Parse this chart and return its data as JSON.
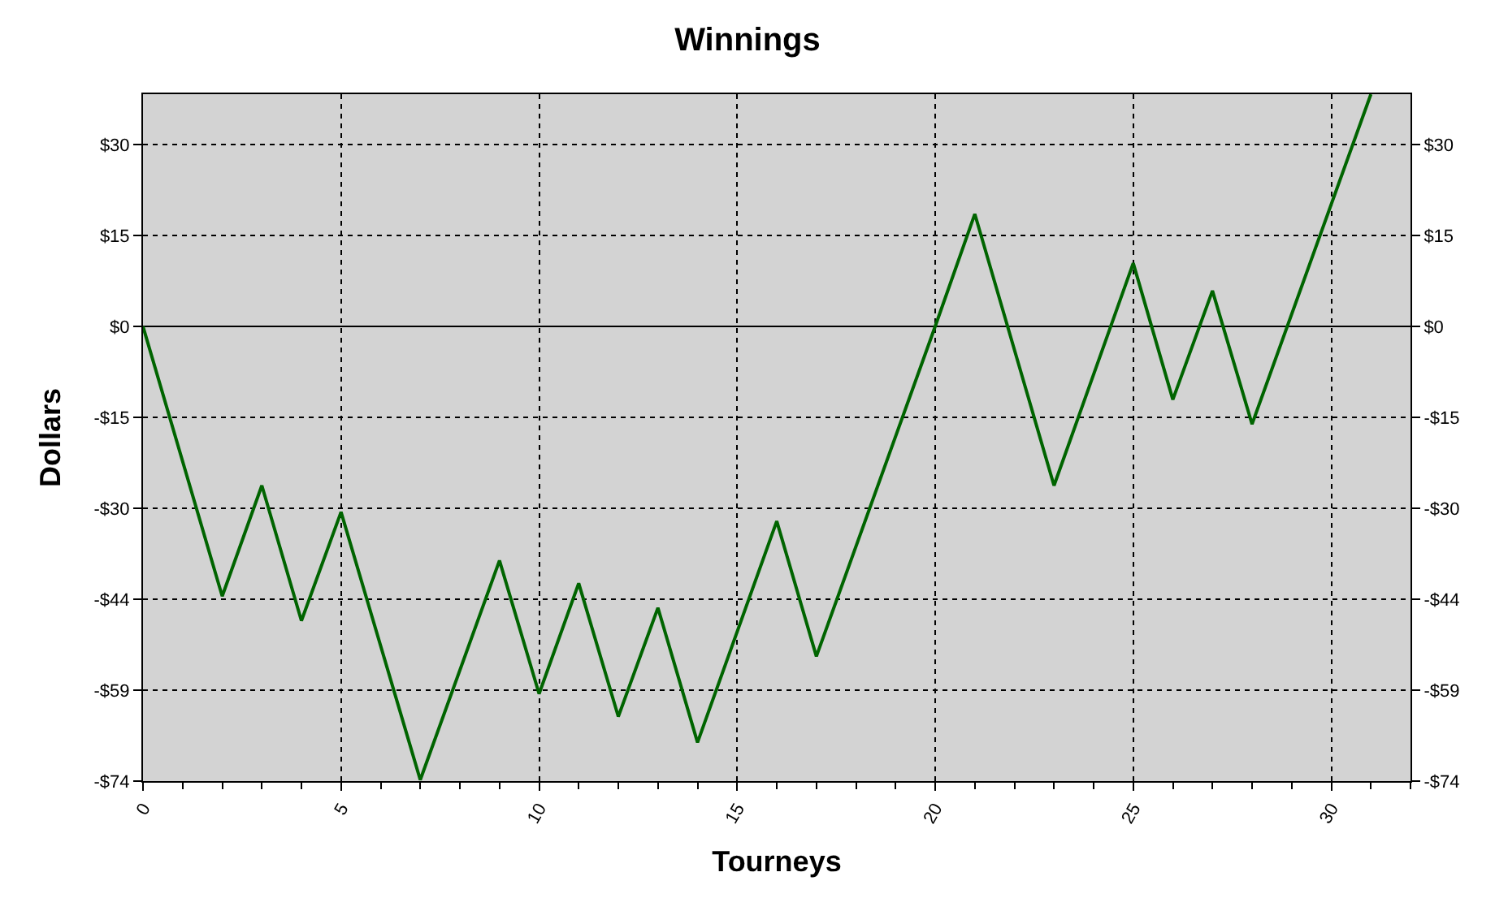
{
  "chart_data": {
    "type": "line",
    "title": "Winnings",
    "xlabel": "Tourneys",
    "ylabel": "Dollars",
    "x": [
      0,
      2,
      3,
      4,
      5,
      7,
      9,
      10,
      11,
      12,
      13,
      14,
      16,
      17,
      20,
      21,
      23,
      25,
      26,
      27,
      28,
      31
    ],
    "series": [
      {
        "color": "#006400",
        "values": [
          0,
          -43.9,
          -25.9,
          -47.9,
          -30.2,
          -73.8,
          -38.1,
          -59.8,
          -41.8,
          -63.5,
          -45.8,
          -67.7,
          -31.7,
          -53.7,
          0,
          18.3,
          -25.9,
          10.3,
          -11.9,
          5.8,
          -15.9,
          37.8
        ]
      }
    ],
    "xlim": [
      0,
      32
    ],
    "xticks": [
      0,
      5,
      10,
      15,
      20,
      25,
      30
    ],
    "ylim": [
      -74,
      37.8
    ],
    "yticks": [
      {
        "value": -74,
        "label": "-$74"
      },
      {
        "value": -59.2,
        "label": "-$59"
      },
      {
        "value": -44.4,
        "label": "-$44"
      },
      {
        "value": -29.6,
        "label": "-$30"
      },
      {
        "value": -14.8,
        "label": "-$15"
      },
      {
        "value": 0,
        "label": "$0"
      },
      {
        "value": 14.8,
        "label": "$15"
      },
      {
        "value": 29.6,
        "label": "$30"
      }
    ],
    "y2lim": [
      -74,
      37.8
    ],
    "y2ticks": [
      {
        "value": -74,
        "label": "-$74"
      },
      {
        "value": -59.2,
        "label": "-$59"
      },
      {
        "value": -44.4,
        "label": "-$44"
      },
      {
        "value": -29.6,
        "label": "-$30"
      },
      {
        "value": -14.8,
        "label": "-$15"
      },
      {
        "value": 0,
        "label": "$0"
      },
      {
        "value": 14.8,
        "label": "$15"
      },
      {
        "value": 29.6,
        "label": "$30"
      }
    ],
    "ref_lines": [
      {
        "axis": "y",
        "value": 0,
        "color": "#000000"
      }
    ],
    "grid": true,
    "marker": "none",
    "line_style": "solid"
  }
}
